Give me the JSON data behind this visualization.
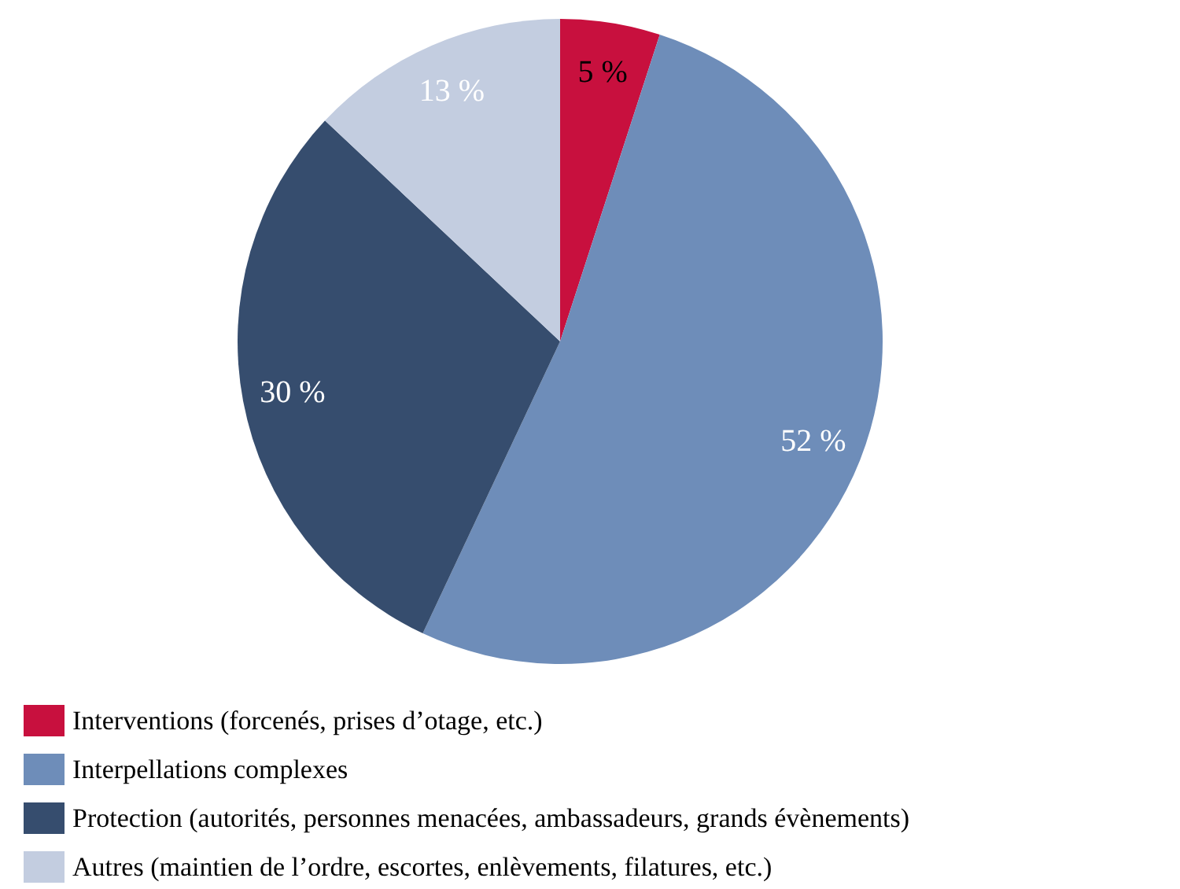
{
  "chart_data": {
    "type": "pie",
    "categories": [
      "Interventions (forcenés, prises d’otage, etc.)",
      "Interpellations complexes",
      "Protection (autorités, personnes menacées, ambassadeurs, grands évènements)",
      "Autres (maintien de l’ordre, escortes, enlèvements, filatures, etc.)"
    ],
    "values": [
      5,
      52,
      30,
      13
    ],
    "colors": [
      "#c8103e",
      "#6e8db9",
      "#364d6e",
      "#c3cde0"
    ],
    "value_labels": [
      "5 %",
      "52 %",
      "30 %",
      "13 %"
    ],
    "legend": "bottom left"
  }
}
